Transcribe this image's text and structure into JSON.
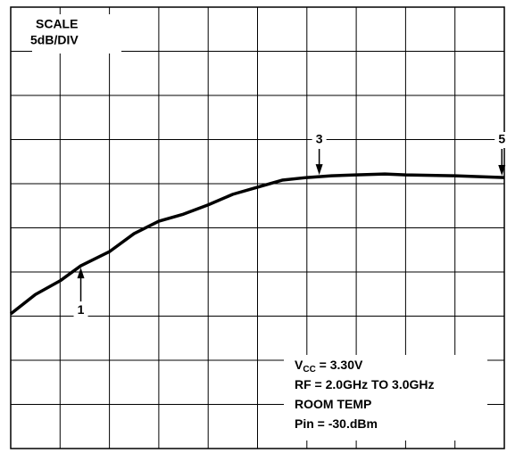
{
  "chart_data": {
    "type": "line",
    "scale_box": [
      "SCALE",
      "5dB/DIV"
    ],
    "x": [
      0,
      0.5,
      1,
      1.42,
      2,
      2.5,
      3,
      3.5,
      4,
      4.5,
      5,
      5.5,
      6,
      6.5,
      7,
      7.58,
      8,
      9,
      10
    ],
    "series": [
      {
        "color": "#000000",
        "values": [
          3.05,
          3.49,
          3.8,
          4.14,
          4.46,
          4.87,
          5.15,
          5.31,
          5.52,
          5.76,
          5.92,
          6.08,
          6.14,
          6.18,
          6.2,
          6.22,
          6.2,
          6.18,
          6.14
        ]
      }
    ],
    "xlim": [
      0,
      10
    ],
    "ylim": [
      0,
      10
    ],
    "xticks": [
      0,
      1,
      2,
      3,
      4,
      5,
      6,
      7,
      8,
      9,
      10
    ],
    "yticks": [
      0,
      1,
      2,
      3,
      4,
      5,
      6,
      7,
      8,
      9,
      10
    ],
    "grid": true,
    "markers": [
      {
        "label": "1",
        "x": 1.42,
        "from": "below"
      },
      {
        "label": "3",
        "x": 6.25,
        "from": "above"
      },
      {
        "label": "5",
        "x": 9.95,
        "from": "above"
      }
    ],
    "conditions": [
      {
        "main": "V",
        "sub": "CC",
        "rest": " = 3.30V"
      },
      {
        "main": "RF = 2.0GHz TO 3.0GHz"
      },
      {
        "main": "ROOM TEMP"
      },
      {
        "main": "Pin = -30.dBm"
      }
    ]
  }
}
